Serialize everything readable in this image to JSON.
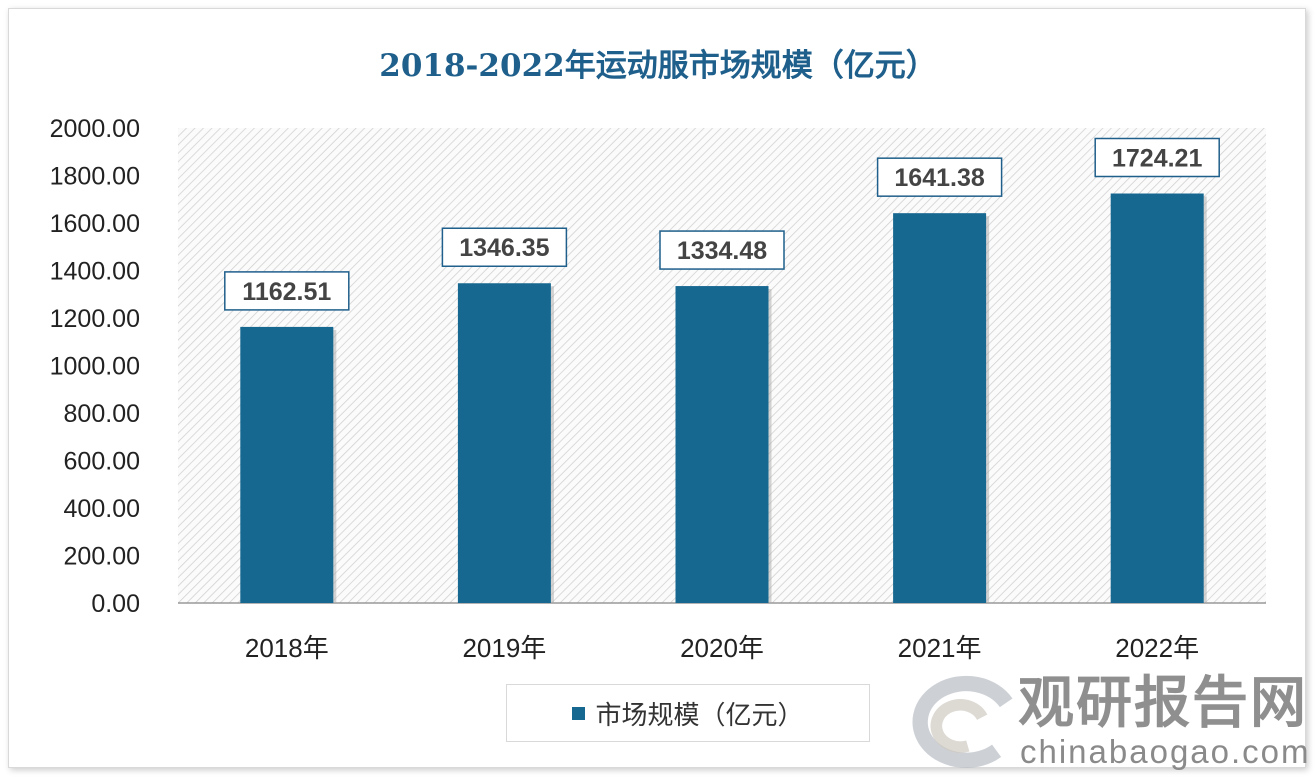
{
  "chart_data": {
    "type": "bar",
    "title": "2018-2022年运动服市场规模（亿元）",
    "categories": [
      "2018年",
      "2019年",
      "2020年",
      "2021年",
      "2022年"
    ],
    "series": [
      {
        "name": "市场规模（亿元）",
        "values": [
          1162.51,
          1346.35,
          1334.48,
          1641.38,
          1724.21
        ]
      }
    ],
    "data_labels": [
      "1162.51",
      "1346.35",
      "1334.48",
      "1641.38",
      "1724.21"
    ],
    "yticks": [
      "0.00",
      "200.00",
      "400.00",
      "600.00",
      "800.00",
      "1000.00",
      "1200.00",
      "1400.00",
      "1600.00",
      "1800.00",
      "2000.00"
    ],
    "ylim": [
      0,
      2000
    ],
    "grid": false,
    "legend": "bottom",
    "bar_color": "#176891",
    "title_color": "#1f5f8b"
  },
  "watermark": {
    "cn": "观研报告网",
    "en": "chinabaogao.com"
  }
}
